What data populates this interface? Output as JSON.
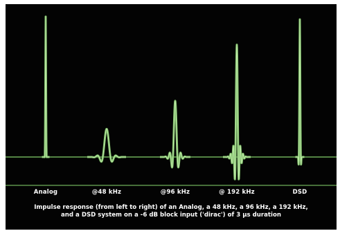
{
  "colors": {
    "background": "#030303",
    "trace": "#7fbf6a",
    "trace_highlight": "#bfe8a8",
    "baseline": "#6fb05a",
    "label_text": "#ffffff"
  },
  "chart_data": {
    "type": "line",
    "title": "",
    "xlabel": "",
    "ylabel": "",
    "categories": [
      "Analog",
      "@48 kHz",
      "@96 kHz",
      "@ 192 kHz",
      "DSD"
    ],
    "ylim": [
      -0.3,
      1.05
    ],
    "grid": false,
    "series": [
      {
        "category": "Analog",
        "peak_amplitude": 1.0,
        "ringing": "none"
      },
      {
        "category": "@48 kHz",
        "peak_amplitude": 0.2,
        "ringing": "pre- and post-ringing, wide"
      },
      {
        "category": "@96 kHz",
        "peak_amplitude": 0.4,
        "ringing": "pre- and post-ringing, medium"
      },
      {
        "category": "@ 192 kHz",
        "peak_amplitude": 0.8,
        "ringing": "pre- and post-ringing, narrow"
      },
      {
        "category": "DSD",
        "peak_amplitude": 0.98,
        "ringing": "minimal"
      }
    ],
    "caption_line1": "Impulse response (from left to right) of an Analog, a 48 kHz, a 96 kHz, a 192 kHz,",
    "caption_line2": "and a DSD system on a -6 dB block input ('dirac') of 3 μs duration"
  }
}
